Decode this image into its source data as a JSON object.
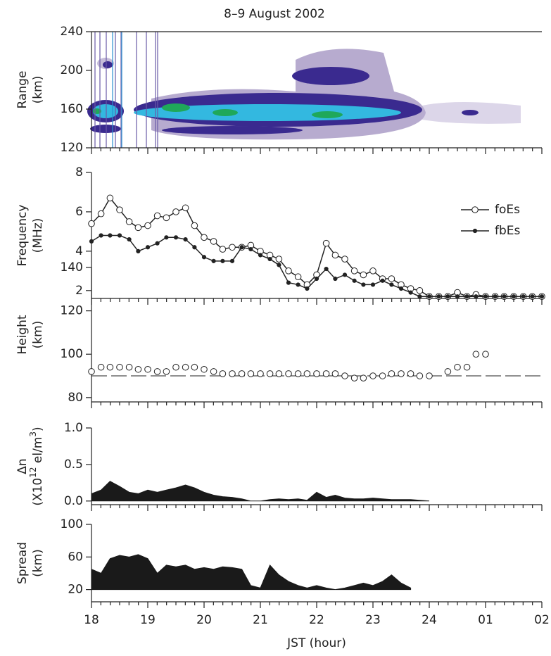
{
  "chart_data": [
    {
      "type": "heatmap",
      "title": "8–9 August 2002",
      "y_label": [
        "Range",
        "(km)"
      ],
      "xlim": [
        18,
        26
      ],
      "ylim": [
        120,
        240
      ],
      "yticks": [
        120,
        160,
        200,
        240
      ]
    },
    {
      "type": "line",
      "y_label": [
        "Frequency",
        "(MHz)"
      ],
      "xlim": [
        18,
        26
      ],
      "ylim": [
        1.6,
        8
      ],
      "yticks": [
        2,
        4,
        6,
        8
      ],
      "legend": "right",
      "x": [
        18,
        18.17,
        18.33,
        18.5,
        18.67,
        18.83,
        19,
        19.17,
        19.33,
        19.5,
        19.67,
        19.83,
        20,
        20.17,
        20.33,
        20.5,
        20.67,
        20.83,
        21,
        21.17,
        21.33,
        21.5,
        21.67,
        21.83,
        22,
        22.17,
        22.33,
        22.5,
        22.67,
        22.83,
        23,
        23.17,
        23.33,
        23.5,
        23.67,
        23.83,
        24,
        24.17,
        24.33,
        24.5,
        24.67,
        24.83,
        25,
        25.17,
        25.33,
        25.5,
        25.67,
        25.83,
        26
      ],
      "series": [
        {
          "name": "foEs",
          "color": "#222222",
          "marker": "open",
          "values": [
            5.4,
            5.9,
            6.7,
            6.1,
            5.5,
            5.2,
            5.3,
            5.8,
            5.7,
            6.0,
            6.2,
            5.3,
            4.7,
            4.5,
            4.1,
            4.2,
            4.2,
            4.3,
            4.0,
            3.8,
            3.6,
            3.0,
            2.7,
            2.3,
            2.8,
            4.4,
            3.8,
            3.6,
            3.0,
            2.8,
            3.0,
            2.6,
            2.6,
            2.3,
            2.1,
            2.0,
            1.7,
            1.7,
            1.7,
            1.9,
            1.7,
            1.8,
            1.7,
            1.7,
            1.7,
            1.7,
            1.7,
            1.7,
            1.7
          ]
        },
        {
          "name": "fbEs",
          "color": "#222222",
          "marker": "filled",
          "values": [
            4.5,
            4.8,
            4.8,
            4.8,
            4.6,
            4.0,
            4.2,
            4.4,
            4.7,
            4.7,
            4.6,
            4.2,
            3.7,
            3.5,
            3.5,
            3.5,
            4.2,
            4.1,
            3.8,
            3.6,
            3.3,
            2.4,
            2.3,
            2.1,
            2.6,
            3.1,
            2.6,
            2.8,
            2.5,
            2.3,
            2.3,
            2.5,
            2.3,
            2.1,
            1.9,
            1.7,
            1.7,
            1.7,
            1.7,
            1.7,
            1.7,
            1.7,
            1.7,
            1.7,
            1.7,
            1.7,
            1.7,
            1.7,
            1.7
          ]
        }
      ]
    },
    {
      "type": "scatter",
      "y_label": [
        "Height",
        "(km)"
      ],
      "xlim": [
        18,
        26
      ],
      "ylim": [
        78,
        140
      ],
      "yticks": [
        80,
        100,
        120,
        140
      ],
      "ref_line": 90,
      "x": [
        18,
        18.17,
        18.33,
        18.5,
        18.67,
        18.83,
        19,
        19.17,
        19.33,
        19.5,
        19.67,
        19.83,
        20,
        20.17,
        20.33,
        20.5,
        20.67,
        20.83,
        21,
        21.17,
        21.33,
        21.5,
        21.67,
        21.83,
        22,
        22.17,
        22.33,
        22.5,
        22.67,
        22.83,
        23,
        23.17,
        23.33,
        23.5,
        23.67,
        23.83,
        24,
        24.17,
        24.33,
        24.5,
        24.67,
        24.83,
        25,
        25.17,
        25.33,
        25.5,
        25.67,
        25.83,
        26
      ],
      "values": [
        92,
        94,
        94,
        94,
        94,
        93,
        93,
        92,
        92,
        94,
        94,
        94,
        93,
        92,
        91,
        91,
        91,
        91,
        91,
        91,
        91,
        91,
        91,
        91,
        91,
        91,
        91,
        90,
        89,
        89,
        90,
        90,
        91,
        91,
        91,
        90,
        90,
        null,
        92,
        94,
        94,
        100,
        100,
        null,
        null,
        null,
        null,
        null,
        null
      ]
    },
    {
      "type": "area",
      "y_label": [
        "Δn",
        [
          "(X10",
          "12",
          " el/m",
          "3",
          ")"
        ]
      ],
      "xlim": [
        18,
        26
      ],
      "ylim": [
        -0.05,
        1.0
      ],
      "area_base": 0,
      "yticks": [
        {
          "value": 0,
          "label": "0.0"
        },
        {
          "value": 0.5,
          "label": "0.5"
        },
        {
          "value": 1,
          "label": "1.0"
        }
      ],
      "x": [
        18,
        18.17,
        18.33,
        18.5,
        18.67,
        18.83,
        19,
        19.17,
        19.33,
        19.5,
        19.67,
        19.83,
        20,
        20.17,
        20.33,
        20.5,
        20.67,
        20.83,
        21,
        21.17,
        21.33,
        21.5,
        21.67,
        21.83,
        22,
        22.17,
        22.33,
        22.5,
        22.67,
        22.83,
        23,
        23.17,
        23.33,
        23.5,
        23.67,
        23.83,
        24,
        24.17,
        24.33,
        24.5,
        24.67,
        24.83,
        25,
        25.17,
        25.33,
        25.5,
        25.67,
        25.83,
        26
      ],
      "values": [
        0.1,
        0.15,
        0.27,
        0.2,
        0.12,
        0.1,
        0.15,
        0.12,
        0.15,
        0.18,
        0.22,
        0.18,
        0.12,
        0.08,
        0.06,
        0.05,
        0.03,
        0,
        0,
        0.02,
        0.03,
        0.02,
        0.03,
        0.01,
        0.12,
        0.05,
        0.08,
        0.04,
        0.03,
        0.03,
        0.04,
        0.03,
        0.02,
        0.02,
        0.02,
        0.01,
        0,
        null,
        null,
        null,
        null,
        null,
        null,
        null,
        null,
        null,
        null,
        null,
        null
      ]
    },
    {
      "type": "area",
      "y_label": [
        "Spread",
        "(km)"
      ],
      "x_label": "JST (hour)",
      "xlim": [
        18,
        26
      ],
      "ylim": [
        5,
        100
      ],
      "yticks": [
        20,
        60,
        100
      ],
      "area_base": 20,
      "xticks": [
        18,
        19,
        20,
        21,
        22,
        23,
        24,
        {
          "value": 25,
          "label": "01"
        },
        {
          "value": 26,
          "label": "02"
        }
      ],
      "x": [
        18,
        18.17,
        18.33,
        18.5,
        18.67,
        18.83,
        19,
        19.17,
        19.33,
        19.5,
        19.67,
        19.83,
        20,
        20.17,
        20.33,
        20.5,
        20.67,
        20.83,
        21,
        21.17,
        21.33,
        21.5,
        21.67,
        21.83,
        22,
        22.17,
        22.33,
        22.5,
        22.67,
        22.83,
        23,
        23.17,
        23.33,
        23.5,
        23.67,
        23.83,
        24,
        24.17,
        24.33,
        24.5,
        24.67,
        24.83,
        25,
        25.17,
        25.33,
        25.5,
        25.67,
        25.83,
        26
      ],
      "values": [
        45,
        40,
        58,
        62,
        60,
        63,
        58,
        40,
        50,
        48,
        50,
        45,
        47,
        45,
        48,
        47,
        45,
        25,
        22,
        50,
        38,
        30,
        25,
        22,
        25,
        22,
        20,
        22,
        25,
        28,
        25,
        30,
        38,
        28,
        22,
        null,
        null,
        null,
        null,
        null,
        null,
        null,
        null,
        null,
        null,
        null,
        null,
        null,
        null
      ]
    }
  ]
}
